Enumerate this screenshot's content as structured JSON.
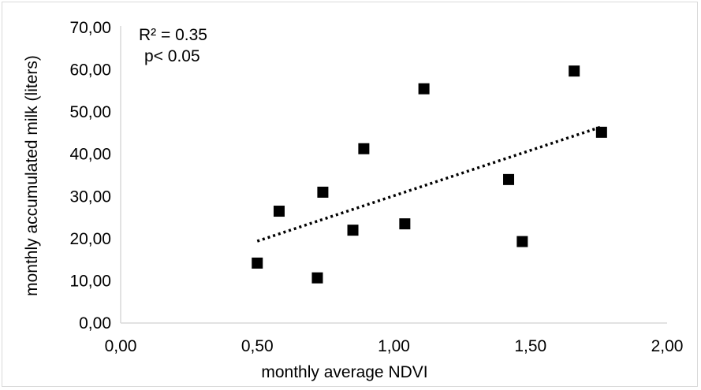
{
  "chart_data": {
    "type": "scatter",
    "xlabel": "monthly average NDVI",
    "ylabel": "monthly accumulated milk (liters)",
    "xlim": [
      0,
      2
    ],
    "ylim": [
      0,
      70
    ],
    "x_ticks": [
      "0,00",
      "0,50",
      "1,00",
      "1,50",
      "2,00"
    ],
    "y_ticks": [
      "0,00",
      "10,00",
      "20,00",
      "30,00",
      "40,00",
      "50,00",
      "60,00",
      "70,00"
    ],
    "x_tick_values": [
      0,
      0.5,
      1,
      1.5,
      2
    ],
    "y_tick_values": [
      0,
      10,
      20,
      30,
      40,
      50,
      60,
      70
    ],
    "points": [
      {
        "x": 0.5,
        "y": 14.2
      },
      {
        "x": 0.58,
        "y": 26.5
      },
      {
        "x": 0.72,
        "y": 10.7
      },
      {
        "x": 0.74,
        "y": 31.0
      },
      {
        "x": 0.85,
        "y": 22.0
      },
      {
        "x": 0.89,
        "y": 41.3
      },
      {
        "x": 1.04,
        "y": 23.5
      },
      {
        "x": 1.11,
        "y": 55.5
      },
      {
        "x": 1.42,
        "y": 34.0
      },
      {
        "x": 1.47,
        "y": 19.3
      },
      {
        "x": 1.66,
        "y": 59.7
      },
      {
        "x": 1.76,
        "y": 45.2
      }
    ],
    "trendline": {
      "style": "dotted",
      "x_start": 0.5,
      "x_end": 1.76,
      "y_start": 19.4,
      "y_end": 46.5
    },
    "annotations": [
      "R² = 0.35",
      "p< 0.05"
    ],
    "grid": false,
    "legend": "none",
    "marker": "square",
    "marker_color": "#000000"
  }
}
